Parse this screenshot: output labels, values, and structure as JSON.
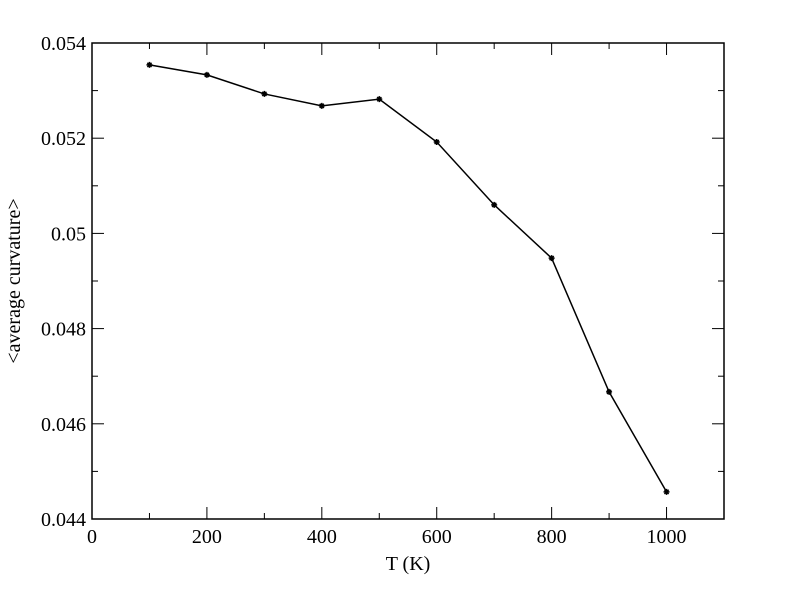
{
  "chart_data": {
    "type": "line",
    "x_label": "T (K)",
    "y_label": "<average curvature>",
    "x": [
      100,
      200,
      300,
      400,
      500,
      600,
      700,
      800,
      900,
      1000
    ],
    "series": [
      {
        "color": "#000000",
        "values": [
          0.05354,
          0.05333,
          0.05293,
          0.05268,
          0.05282,
          0.05192,
          0.0506,
          0.04948,
          0.04667,
          0.04457
        ]
      }
    ],
    "xlim": [
      0,
      1100
    ],
    "xticks": [
      0,
      200,
      400,
      600,
      800,
      1000
    ],
    "ylim": [
      0.044,
      0.054
    ],
    "yticks": [
      0.044,
      0.046,
      0.048,
      0.05,
      0.052,
      0.054
    ],
    "grid": false
  }
}
